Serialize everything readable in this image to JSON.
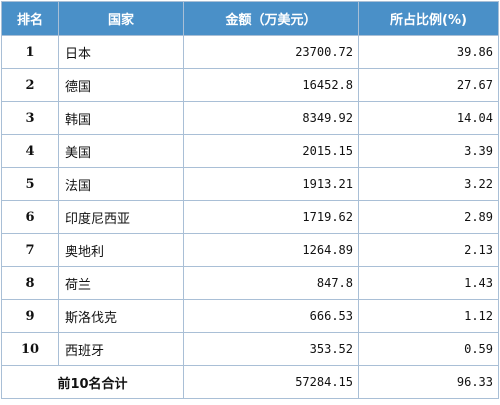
{
  "table": {
    "headers": {
      "rank": "排名",
      "country": "国家",
      "amount": "金额（万美元）",
      "share": "所占比例(%)"
    },
    "rows": [
      {
        "rank": "1",
        "country": "日本",
        "amount": "23700.72",
        "share": "39.86"
      },
      {
        "rank": "2",
        "country": "德国",
        "amount": "16452.8",
        "share": "27.67"
      },
      {
        "rank": "3",
        "country": "韩国",
        "amount": "8349.92",
        "share": "14.04"
      },
      {
        "rank": "4",
        "country": "美国",
        "amount": "2015.15",
        "share": "3.39"
      },
      {
        "rank": "5",
        "country": "法国",
        "amount": "1913.21",
        "share": "3.22"
      },
      {
        "rank": "6",
        "country": "印度尼西亚",
        "amount": "1719.62",
        "share": "2.89"
      },
      {
        "rank": "7",
        "country": "奥地利",
        "amount": "1264.89",
        "share": "2.13"
      },
      {
        "rank": "8",
        "country": "荷兰",
        "amount": "847.8",
        "share": "1.43"
      },
      {
        "rank": "9",
        "country": "斯洛伐克",
        "amount": "666.53",
        "share": "1.12"
      },
      {
        "rank": "10",
        "country": "西班牙",
        "amount": "353.52",
        "share": "0.59"
      }
    ],
    "total": {
      "label": "前10名合计",
      "amount": "57284.15",
      "share": "96.33"
    }
  },
  "colors": {
    "header_bg": "#4a90c8",
    "header_text": "#ffffff",
    "border": "#a9bfd6"
  }
}
